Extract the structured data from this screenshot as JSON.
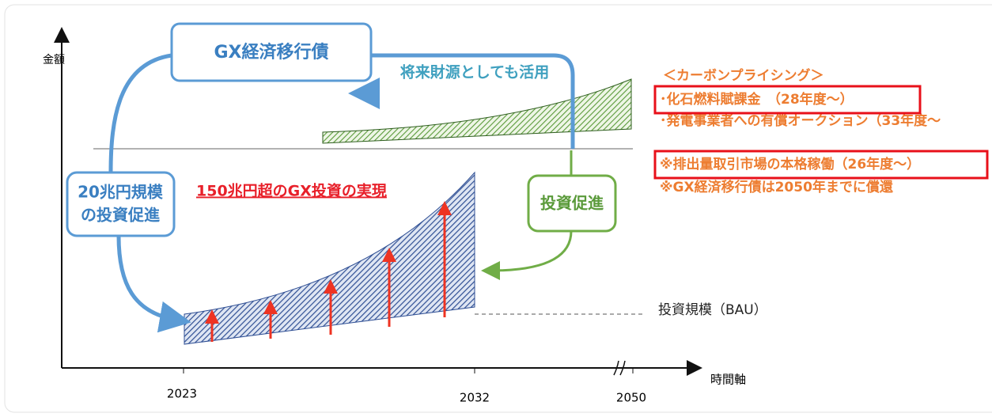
{
  "axes": {
    "y_label": "金額",
    "x_label": "時間軸",
    "x_ticks": [
      "2023",
      "2032",
      "2050"
    ]
  },
  "boxes": {
    "bond": "GX経済移行債",
    "investment_scale": [
      "20兆円規模",
      "の投資促進"
    ],
    "promotion": "投資促進"
  },
  "labels": {
    "future_funding": "将来財源としても活用",
    "investment_total": "150兆円超のGX投資の実現",
    "bau": "投資規模（BAU）"
  },
  "carbon_pricing": {
    "heading": "＜カーボンプライシング＞",
    "items": [
      "･化石燃料賦課金　（28年度～）",
      "･発電事業者への有償オークション（33年度～",
      "※排出量取引市場の本格稼働（26年度～）",
      "※GX経済移行債は2050年までに償還"
    ]
  }
}
